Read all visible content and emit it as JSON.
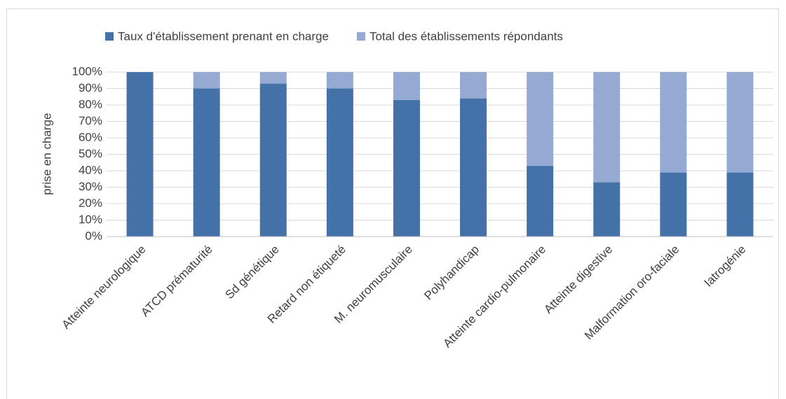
{
  "chart_data": {
    "type": "stacked_bar",
    "y_label": "prise en charge",
    "categories": [
      "Atteinte neurologique",
      "ATCD prématurité",
      "Sd génétique",
      "Retard non étiqueté",
      "M. neuromusculaire",
      "Polyhandicap",
      "Atteinte cardio-pulmonaire",
      "Atteinte digestive",
      "Malformation oro-faciale",
      "Iatrogénie"
    ],
    "series": [
      {
        "name": "Taux d'établissement prenant en charge",
        "color": "#4472a8",
        "values": [
          100,
          90,
          93,
          90,
          83,
          84,
          43,
          33,
          39,
          39
        ]
      },
      {
        "name": "Total des établissements répondants",
        "color": "#95aad3",
        "values": [
          0,
          10,
          7,
          10,
          17,
          16,
          57,
          67,
          61,
          61
        ]
      }
    ],
    "ylim": [
      0,
      100
    ],
    "yticks": [
      {
        "value": 0,
        "label": "0%"
      },
      {
        "value": 10,
        "label": "10%"
      },
      {
        "value": 20,
        "label": "20%"
      },
      {
        "value": 30,
        "label": "30%"
      },
      {
        "value": 40,
        "label": "40%"
      },
      {
        "value": 50,
        "label": "50%"
      },
      {
        "value": 60,
        "label": "60%"
      },
      {
        "value": 70,
        "label": "70%"
      },
      {
        "value": 80,
        "label": "80%"
      },
      {
        "value": 90,
        "label": "90%"
      },
      {
        "value": 100,
        "label": "100%"
      }
    ],
    "grid": true,
    "legend": "top"
  }
}
